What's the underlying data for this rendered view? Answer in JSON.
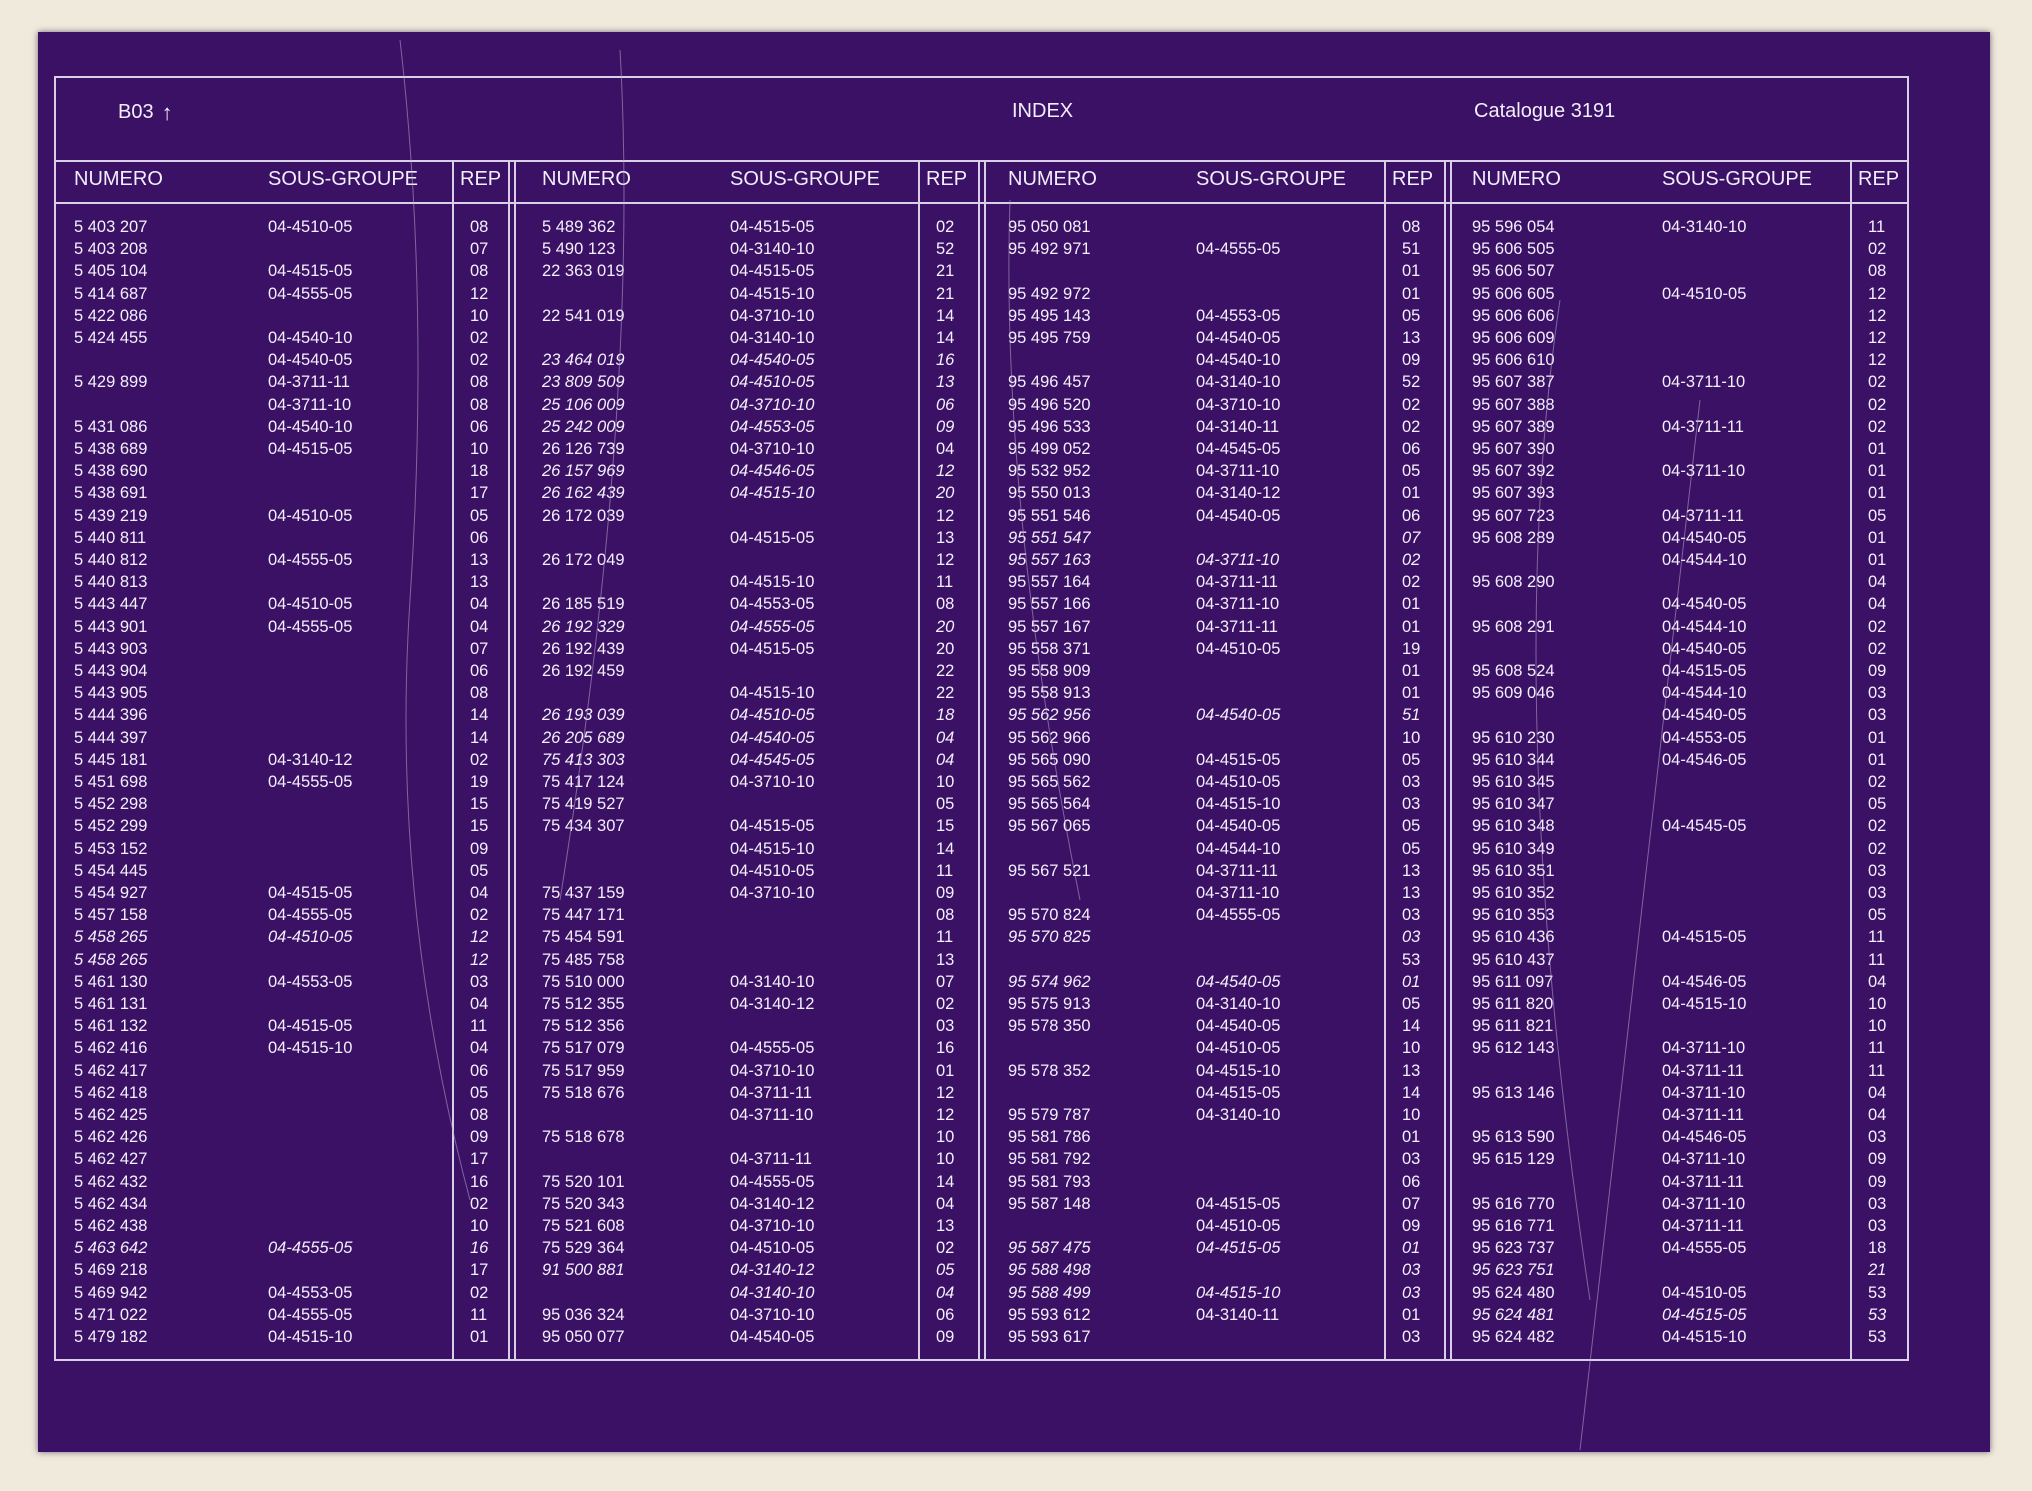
{
  "header": {
    "left": "B03",
    "center": "INDEX",
    "right": "Catalogue  3191"
  },
  "column_labels": {
    "numero": "NUMERO",
    "sous_groupe": "SOUS-GROUPE",
    "rep": "REP"
  },
  "columns": [
    [
      [
        "5 403 207",
        "04-4510-05",
        "08"
      ],
      [
        "5 403 208",
        "",
        "07"
      ],
      [
        "5 405 104",
        "04-4515-05",
        "08"
      ],
      [
        "5 414 687",
        "04-4555-05",
        "12"
      ],
      [
        "5 422 086",
        "",
        "10"
      ],
      [
        "5 424 455",
        "04-4540-10",
        "02"
      ],
      [
        "",
        "04-4540-05",
        "02"
      ],
      [
        "5 429 899",
        "04-3711-11",
        "08"
      ],
      [
        "",
        "04-3711-10",
        "08"
      ],
      [
        "5 431 086",
        "04-4540-10",
        "06"
      ],
      [
        "5 438 689",
        "04-4515-05",
        "10"
      ],
      [
        "5 438 690",
        "",
        "18"
      ],
      [
        "5 438 691",
        "",
        "17"
      ],
      [
        "5 439 219",
        "04-4510-05",
        "05"
      ],
      [
        "5 440 811",
        "",
        "06"
      ],
      [
        "5 440 812",
        "04-4555-05",
        "13"
      ],
      [
        "5 440 813",
        "",
        "13"
      ],
      [
        "5 443 447",
        "04-4510-05",
        "04"
      ],
      [
        "5 443 901",
        "04-4555-05",
        "04"
      ],
      [
        "5 443 903",
        "",
        "07"
      ],
      [
        "5 443 904",
        "",
        "06"
      ],
      [
        "5 443 905",
        "",
        "08"
      ],
      [
        "5 444 396",
        "",
        "14"
      ],
      [
        "5 444 397",
        "",
        "14"
      ],
      [
        "5 445 181",
        "04-3140-12",
        "02"
      ],
      [
        "5 451 698",
        "04-4555-05",
        "19"
      ],
      [
        "5 452 298",
        "",
        "15"
      ],
      [
        "5 452 299",
        "",
        "15"
      ],
      [
        "5 453 152",
        "",
        "09"
      ],
      [
        "5 454 445",
        "",
        "05"
      ],
      [
        "5 454 927",
        "04-4515-05",
        "04"
      ],
      [
        "5 457 158",
        "04-4555-05",
        "02"
      ],
      [
        "5 458 265",
        "04-4510-05",
        "12",
        "i"
      ],
      [
        "5 458 265",
        "",
        "12",
        "i"
      ],
      [
        "5 461 130",
        "04-4553-05",
        "03"
      ],
      [
        "5 461 131",
        "",
        "04"
      ],
      [
        "5 461 132",
        "04-4515-05",
        "11"
      ],
      [
        "5 462 416",
        "04-4515-10",
        "04"
      ],
      [
        "5 462 417",
        "",
        "06"
      ],
      [
        "5 462 418",
        "",
        "05"
      ],
      [
        "5 462 425",
        "",
        "08"
      ],
      [
        "5 462 426",
        "",
        "09"
      ],
      [
        "5 462 427",
        "",
        "17"
      ],
      [
        "5 462 432",
        "",
        "16"
      ],
      [
        "5 462 434",
        "",
        "02"
      ],
      [
        "5 462 438",
        "",
        "10"
      ],
      [
        "5 463 642",
        "04-4555-05",
        "16",
        "i"
      ],
      [
        "5 469 218",
        "",
        "17"
      ],
      [
        "5 469 942",
        "04-4553-05",
        "02"
      ],
      [
        "5 471 022",
        "04-4555-05",
        "11"
      ],
      [
        "5 479 182",
        "04-4515-10",
        "01"
      ]
    ],
    [
      [
        "5 489 362",
        "04-4515-05",
        "02"
      ],
      [
        "5 490 123",
        "04-3140-10",
        "52"
      ],
      [
        "22 363 019",
        "04-4515-05",
        "21"
      ],
      [
        "",
        "04-4515-10",
        "21"
      ],
      [
        "22 541 019",
        "04-3710-10",
        "14"
      ],
      [
        "",
        "04-3140-10",
        "14"
      ],
      [
        "23 464 019",
        "04-4540-05",
        "16",
        "i"
      ],
      [
        "23 809 509",
        "04-4510-05",
        "13",
        "i"
      ],
      [
        "25 106 009",
        "04-3710-10",
        "06",
        "i"
      ],
      [
        "25 242 009",
        "04-4553-05",
        "09",
        "i"
      ],
      [
        "26 126 739",
        "04-3710-10",
        "04"
      ],
      [
        "26 157 969",
        "04-4546-05",
        "12",
        "i"
      ],
      [
        "26 162 439",
        "04-4515-10",
        "20",
        "i"
      ],
      [
        "26 172 039",
        "",
        "12"
      ],
      [
        "",
        "04-4515-05",
        "13"
      ],
      [
        "26 172 049",
        "",
        "12"
      ],
      [
        "",
        "04-4515-10",
        "11"
      ],
      [
        "26 185 519",
        "04-4553-05",
        "08"
      ],
      [
        "26 192 329",
        "04-4555-05",
        "20",
        "i"
      ],
      [
        "26 192 439",
        "04-4515-05",
        "20"
      ],
      [
        "26 192 459",
        "",
        "22"
      ],
      [
        "",
        "04-4515-10",
        "22"
      ],
      [
        "26 193 039",
        "04-4510-05",
        "18",
        "i"
      ],
      [
        "26 205 689",
        "04-4540-05",
        "04",
        "i"
      ],
      [
        "75 413 303",
        "04-4545-05",
        "04",
        "i"
      ],
      [
        "75 417 124",
        "04-3710-10",
        "10"
      ],
      [
        "75 419 527",
        "",
        "05"
      ],
      [
        "75 434 307",
        "04-4515-05",
        "15"
      ],
      [
        "",
        "04-4515-10",
        "14"
      ],
      [
        "",
        "04-4510-05",
        "11"
      ],
      [
        "75 437 159",
        "04-3710-10",
        "09"
      ],
      [
        "75 447 171",
        "",
        "08"
      ],
      [
        "75 454 591",
        "",
        "11"
      ],
      [
        "75 485 758",
        "",
        "13"
      ],
      [
        "75 510 000",
        "04-3140-10",
        "07"
      ],
      [
        "75 512 355",
        "04-3140-12",
        "02"
      ],
      [
        "75 512 356",
        "",
        "03"
      ],
      [
        "75 517 079",
        "04-4555-05",
        "16"
      ],
      [
        "75 517 959",
        "04-3710-10",
        "01"
      ],
      [
        "75 518 676",
        "04-3711-11",
        "12"
      ],
      [
        "",
        "04-3711-10",
        "12"
      ],
      [
        "75 518 678",
        "",
        "10"
      ],
      [
        "",
        "04-3711-11",
        "10"
      ],
      [
        "75 520 101",
        "04-4555-05",
        "14"
      ],
      [
        "75 520 343",
        "04-3140-12",
        "04"
      ],
      [
        "75 521 608",
        "04-3710-10",
        "13"
      ],
      [
        "75 529 364",
        "04-4510-05",
        "02"
      ],
      [
        "91 500 881",
        "04-3140-12",
        "05",
        "i"
      ],
      [
        "",
        "04-3140-10",
        "04",
        "i"
      ],
      [
        "95 036 324",
        "04-3710-10",
        "06"
      ],
      [
        "95 050 077",
        "04-4540-05",
        "09"
      ]
    ],
    [
      [
        "95 050 081",
        "",
        "08"
      ],
      [
        "95 492 971",
        "04-4555-05",
        "51"
      ],
      [
        "",
        "",
        "01"
      ],
      [
        "95 492 972",
        "",
        "01"
      ],
      [
        "95 495 143",
        "04-4553-05",
        "05"
      ],
      [
        "95 495 759",
        "04-4540-05",
        "13"
      ],
      [
        "",
        "04-4540-10",
        "09"
      ],
      [
        "95 496 457",
        "04-3140-10",
        "52"
      ],
      [
        "95 496 520",
        "04-3710-10",
        "02"
      ],
      [
        "95 496 533",
        "04-3140-11",
        "02"
      ],
      [
        "95 499 052",
        "04-4545-05",
        "06"
      ],
      [
        "95 532 952",
        "04-3711-10",
        "05"
      ],
      [
        "95 550 013",
        "04-3140-12",
        "01"
      ],
      [
        "95 551 546",
        "04-4540-05",
        "06"
      ],
      [
        "95 551 547",
        "",
        "07",
        "i"
      ],
      [
        "95 557 163",
        "04-3711-10",
        "02",
        "i"
      ],
      [
        "95 557 164",
        "04-3711-11",
        "02"
      ],
      [
        "95 557 166",
        "04-3711-10",
        "01"
      ],
      [
        "95 557 167",
        "04-3711-11",
        "01"
      ],
      [
        "95 558 371",
        "04-4510-05",
        "19"
      ],
      [
        "95 558 909",
        "",
        "01"
      ],
      [
        "95 558 913",
        "",
        "01"
      ],
      [
        "95 562 956",
        "04-4540-05",
        "51",
        "i"
      ],
      [
        "95 562 966",
        "",
        "10"
      ],
      [
        "95 565 090",
        "04-4515-05",
        "05"
      ],
      [
        "95 565 562",
        "04-4510-05",
        "03"
      ],
      [
        "95 565 564",
        "04-4515-10",
        "03"
      ],
      [
        "95 567 065",
        "04-4540-05",
        "05"
      ],
      [
        "",
        "04-4544-10",
        "05"
      ],
      [
        "95 567 521",
        "04-3711-11",
        "13"
      ],
      [
        "",
        "04-3711-10",
        "13"
      ],
      [
        "95 570 824",
        "04-4555-05",
        "03"
      ],
      [
        "95 570 825",
        "",
        "03",
        "i"
      ],
      [
        "",
        "",
        "53"
      ],
      [
        "95 574 962",
        "04-4540-05",
        "01",
        "i"
      ],
      [
        "95 575 913",
        "04-3140-10",
        "05"
      ],
      [
        "95 578 350",
        "04-4540-05",
        "14"
      ],
      [
        "",
        "04-4510-05",
        "10"
      ],
      [
        "95 578 352",
        "04-4515-10",
        "13"
      ],
      [
        "",
        "04-4515-05",
        "14"
      ],
      [
        "95 579 787",
        "04-3140-10",
        "10"
      ],
      [
        "95 581 786",
        "",
        "01"
      ],
      [
        "95 581 792",
        "",
        "03"
      ],
      [
        "95 581 793",
        "",
        "06"
      ],
      [
        "95 587 148",
        "04-4515-05",
        "07"
      ],
      [
        "",
        "04-4510-05",
        "09"
      ],
      [
        "95 587 475",
        "04-4515-05",
        "01",
        "i"
      ],
      [
        "95 588 498",
        "",
        "03",
        "i"
      ],
      [
        "95 588 499",
        "04-4515-10",
        "03",
        "i"
      ],
      [
        "95 593 612",
        "04-3140-11",
        "01"
      ],
      [
        "95 593 617",
        "",
        "03"
      ]
    ],
    [
      [
        "95 596 054",
        "04-3140-10",
        "11"
      ],
      [
        "95 606 505",
        "",
        "02"
      ],
      [
        "95 606 507",
        "",
        "08"
      ],
      [
        "95 606 605",
        "04-4510-05",
        "12"
      ],
      [
        "95 606 606",
        "",
        "12"
      ],
      [
        "95 606 609",
        "",
        "12"
      ],
      [
        "95 606 610",
        "",
        "12"
      ],
      [
        "95 607 387",
        "04-3711-10",
        "02"
      ],
      [
        "95 607 388",
        "",
        "02"
      ],
      [
        "95 607 389",
        "04-3711-11",
        "02"
      ],
      [
        "95 607 390",
        "",
        "01"
      ],
      [
        "95 607 392",
        "04-3711-10",
        "01"
      ],
      [
        "95 607 393",
        "",
        "01"
      ],
      [
        "95 607 723",
        "04-3711-11",
        "05"
      ],
      [
        "95 608 289",
        "04-4540-05",
        "01"
      ],
      [
        "",
        "04-4544-10",
        "01"
      ],
      [
        "95 608 290",
        "",
        "04"
      ],
      [
        "",
        "04-4540-05",
        "04"
      ],
      [
        "95 608 291",
        "04-4544-10",
        "02"
      ],
      [
        "",
        "04-4540-05",
        "02"
      ],
      [
        "95 608 524",
        "04-4515-05",
        "09"
      ],
      [
        "95 609 046",
        "04-4544-10",
        "03"
      ],
      [
        "",
        "04-4540-05",
        "03"
      ],
      [
        "95 610 230",
        "04-4553-05",
        "01"
      ],
      [
        "95 610 344",
        "04-4546-05",
        "01"
      ],
      [
        "95 610 345",
        "",
        "02"
      ],
      [
        "95 610 347",
        "",
        "05"
      ],
      [
        "95 610 348",
        "04-4545-05",
        "02"
      ],
      [
        "95 610 349",
        "",
        "02"
      ],
      [
        "95 610 351",
        "",
        "03"
      ],
      [
        "95 610 352",
        "",
        "03"
      ],
      [
        "95 610 353",
        "",
        "05"
      ],
      [
        "95 610 436",
        "04-4515-05",
        "11"
      ],
      [
        "95 610 437",
        "",
        "11"
      ],
      [
        "95 611 097",
        "04-4546-05",
        "04"
      ],
      [
        "95 611 820",
        "04-4515-10",
        "10"
      ],
      [
        "95 611 821",
        "",
        "10"
      ],
      [
        "95 612 143",
        "04-3711-10",
        "11"
      ],
      [
        "",
        "04-3711-11",
        "11"
      ],
      [
        "95 613 146",
        "04-3711-10",
        "04"
      ],
      [
        "",
        "04-3711-11",
        "04"
      ],
      [
        "95 613 590",
        "04-4546-05",
        "03"
      ],
      [
        "95 615 129",
        "04-3711-10",
        "09"
      ],
      [
        "",
        "04-3711-11",
        "09"
      ],
      [
        "95 616 770",
        "04-3711-10",
        "03"
      ],
      [
        "95 616 771",
        "04-3711-11",
        "03"
      ],
      [
        "95 623 737",
        "04-4555-05",
        "18"
      ],
      [
        "95 623 751",
        "",
        "21",
        "i"
      ],
      [
        "95 624 480",
        "04-4510-05",
        "53"
      ],
      [
        "95 624 481",
        "04-4515-05",
        "53",
        "i"
      ],
      [
        "95 624 482",
        "04-4515-10",
        "53"
      ]
    ]
  ]
}
